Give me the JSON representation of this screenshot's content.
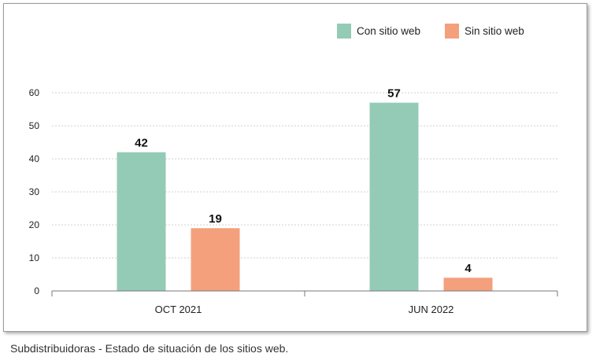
{
  "chart_data": {
    "type": "bar",
    "categories": [
      "OCT 2021",
      "JUN 2022"
    ],
    "series": [
      {
        "name": "Con sitio web",
        "color": "#94cbb6",
        "values": [
          42,
          57
        ]
      },
      {
        "name": "Sin sitio web",
        "color": "#f4a07d",
        "values": [
          19,
          4
        ]
      }
    ],
    "ylim": [
      0,
      60
    ],
    "yticks": [
      0,
      10,
      20,
      30,
      40,
      50,
      60
    ],
    "grid": true,
    "legend_position": "top-right",
    "data_labels": true
  },
  "caption": "Subdistribuidoras - Estado de situación de los sitios web."
}
